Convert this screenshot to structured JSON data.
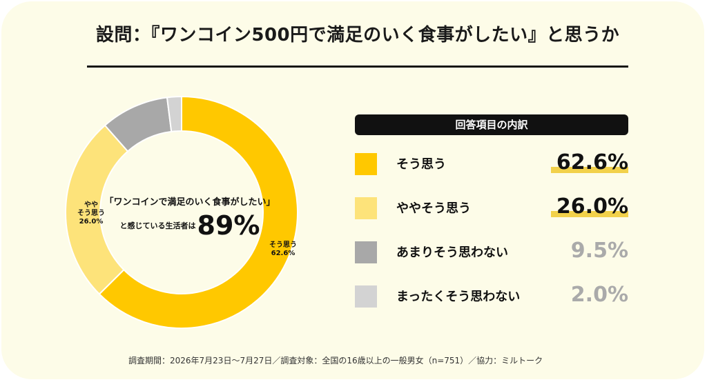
{
  "title": "設問：『ワンコイン500円で満足のいく食事がしたい』と思うか",
  "center": {
    "line1": "「ワンコインで満足のいく食事がしたい」",
    "line2_pre": "と感じている生活者は",
    "line2_big": "89%"
  },
  "segment_labels": {
    "agree": "そう思う\n62.6%",
    "somewhat": "やや\nそう思う\n26.0%"
  },
  "legend": {
    "header": "回答項目の内訳",
    "items": [
      {
        "label": "そう思う",
        "value": "62.6%",
        "swatch": "#ffc800",
        "value_color": "#111111",
        "highlight": true
      },
      {
        "label": "ややそう思う",
        "value": "26.0%",
        "swatch": "#fde37a",
        "value_color": "#111111",
        "highlight": true
      },
      {
        "label": "あまりそう思わない",
        "value": "9.5%",
        "swatch": "#a8a8a8",
        "value_color": "#aaaaaa",
        "highlight": false
      },
      {
        "label": "まったくそう思わない",
        "value": "2.0%",
        "swatch": "#d3d3d3",
        "value_color": "#aaaaaa",
        "highlight": false
      }
    ]
  },
  "footer": "調査期間：2026年7月23日〜7月27日／調査対象：全国の16歳以上の一般男女（n=751）／協力：ミルトーク",
  "chart_data": {
    "type": "pie",
    "categories": [
      "そう思う",
      "ややそう思う",
      "あまりそう思わない",
      "まったくそう思わない"
    ],
    "values": [
      62.6,
      26.0,
      9.5,
      2.0
    ],
    "colors": [
      "#ffc800",
      "#fde37a",
      "#a8a8a8",
      "#d3d3d3"
    ],
    "donut": true
  }
}
